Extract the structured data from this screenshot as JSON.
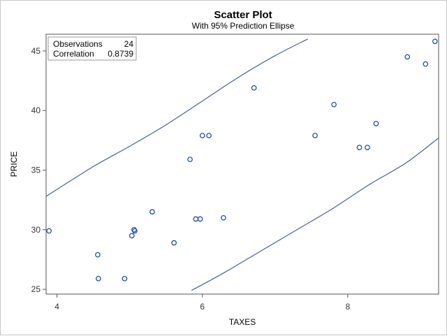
{
  "chart_data": {
    "type": "scatter",
    "title": "Scatter Plot",
    "subtitle": "With 95% Prediction Ellipse",
    "xlabel": "TAXES",
    "ylabel": "PRICE",
    "xlim": [
      3.85,
      9.25
    ],
    "ylim": [
      24.6,
      46.4
    ],
    "xticks": [
      4,
      6,
      8
    ],
    "yticks": [
      25,
      30,
      35,
      40,
      45
    ],
    "grid": false,
    "legend": "none",
    "points": [
      {
        "x": 3.89,
        "y": 29.9
      },
      {
        "x": 4.56,
        "y": 27.9
      },
      {
        "x": 4.57,
        "y": 25.9
      },
      {
        "x": 4.93,
        "y": 25.9
      },
      {
        "x": 5.03,
        "y": 29.5
      },
      {
        "x": 5.06,
        "y": 30.0
      },
      {
        "x": 5.07,
        "y": 29.9
      },
      {
        "x": 5.31,
        "y": 31.5
      },
      {
        "x": 5.61,
        "y": 28.9
      },
      {
        "x": 5.83,
        "y": 35.9
      },
      {
        "x": 5.91,
        "y": 30.9
      },
      {
        "x": 5.97,
        "y": 30.9
      },
      {
        "x": 6.0,
        "y": 37.9
      },
      {
        "x": 6.09,
        "y": 37.9
      },
      {
        "x": 6.29,
        "y": 31.0
      },
      {
        "x": 6.71,
        "y": 41.9
      },
      {
        "x": 7.55,
        "y": 37.9
      },
      {
        "x": 7.81,
        "y": 40.5
      },
      {
        "x": 8.16,
        "y": 36.9
      },
      {
        "x": 8.27,
        "y": 36.9
      },
      {
        "x": 8.39,
        "y": 38.9
      },
      {
        "x": 8.82,
        "y": 44.5
      },
      {
        "x": 9.07,
        "y": 43.9
      },
      {
        "x": 9.2,
        "y": 45.8
      }
    ],
    "ellipse_upper": [
      {
        "x": 3.85,
        "y": 32.8
      },
      {
        "x": 4.5,
        "y": 35.3
      },
      {
        "x": 5.0,
        "y": 37.0
      },
      {
        "x": 5.5,
        "y": 38.8
      },
      {
        "x": 6.0,
        "y": 40.8
      },
      {
        "x": 6.5,
        "y": 42.8
      },
      {
        "x": 7.0,
        "y": 44.6
      },
      {
        "x": 7.45,
        "y": 46.0
      }
    ],
    "ellipse_lower": [
      {
        "x": 5.85,
        "y": 24.9
      },
      {
        "x": 6.3,
        "y": 26.4
      },
      {
        "x": 6.8,
        "y": 28.2
      },
      {
        "x": 7.3,
        "y": 30.0
      },
      {
        "x": 7.8,
        "y": 31.8
      },
      {
        "x": 8.3,
        "y": 33.8
      },
      {
        "x": 8.8,
        "y": 35.6
      },
      {
        "x": 9.25,
        "y": 37.7
      }
    ],
    "colors": {
      "marker": "#1f4fa3",
      "ellipse": "#4a5f9a",
      "axis": "#555555"
    }
  },
  "inset": {
    "observations_label": "Observations",
    "observations_value": "24",
    "correlation_label": "Correlation",
    "correlation_value": "0.8739"
  }
}
